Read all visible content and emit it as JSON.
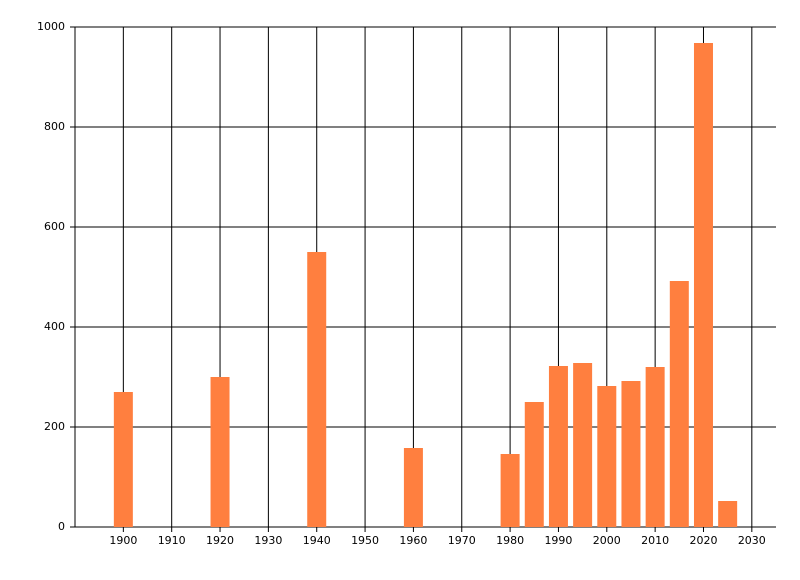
{
  "chart_data": {
    "type": "bar",
    "x": [
      1900,
      1920,
      1940,
      1960,
      1980,
      1985,
      1990,
      1995,
      2000,
      2005,
      2010,
      2015,
      2020,
      2025
    ],
    "values": [
      270,
      300,
      550,
      158,
      146,
      250,
      322,
      328,
      282,
      292,
      320,
      492,
      968,
      52
    ],
    "color": "#ff7f3f",
    "xlim": [
      1890,
      2035
    ],
    "xticks": [
      1900,
      1910,
      1920,
      1930,
      1940,
      1950,
      1960,
      1970,
      1980,
      1990,
      2000,
      2010,
      2020,
      2030
    ],
    "ylim": [
      0,
      1000
    ],
    "yticks": [
      0,
      200,
      400,
      600,
      800,
      1000
    ],
    "grid": true
  }
}
